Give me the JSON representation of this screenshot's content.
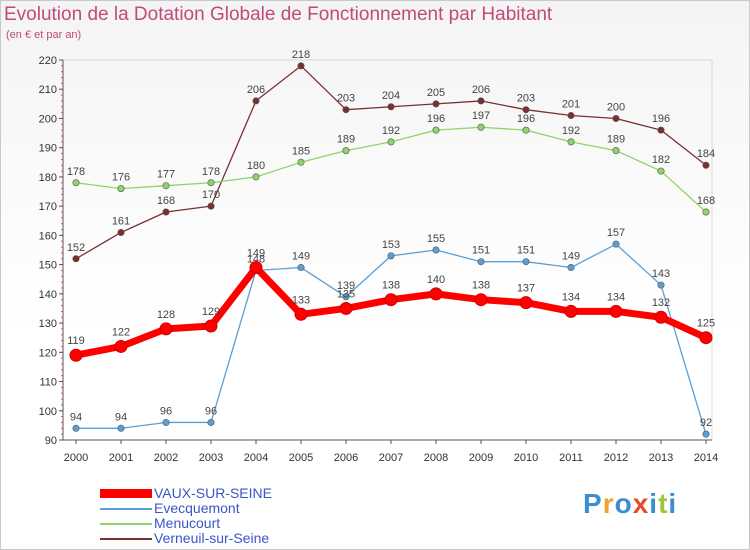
{
  "title": "Evolution de la Dotation Globale de Fonctionnement par Habitant",
  "subtitle": "(en € et par an)",
  "logo": {
    "text": "Proxiti",
    "letters": [
      "P",
      "r",
      "o",
      "x",
      "i",
      "t",
      "i"
    ],
    "colors": [
      "#3b8fd0",
      "#f2a22b",
      "#3b8fd0",
      "#e84a2f",
      "#3b8fd0",
      "#9cc63b",
      "#3b8fd0"
    ]
  },
  "chart_data": {
    "type": "line",
    "title": "Evolution de la Dotation Globale de Fonctionnement par Habitant",
    "subtitle": "(en € et par an)",
    "categories": [
      "2000",
      "2001",
      "2002",
      "2003",
      "2004",
      "2005",
      "2006",
      "2007",
      "2008",
      "2009",
      "2010",
      "2011",
      "2012",
      "2013",
      "2014"
    ],
    "ylim": [
      90,
      220
    ],
    "yticks": [
      90,
      100,
      110,
      120,
      130,
      140,
      150,
      160,
      170,
      180,
      190,
      200,
      210,
      220
    ],
    "grid": false,
    "legend_position": "bottom-left",
    "series": [
      {
        "name": "VAUX-SUR-SEINE",
        "color": "#ff0000",
        "values": [
          119,
          122,
          128,
          129,
          149,
          133,
          135,
          138,
          140,
          138,
          137,
          134,
          134,
          132,
          125
        ],
        "labels": [
          "119",
          "122",
          "128",
          "129",
          "149",
          "133",
          "135",
          "138",
          "140",
          "138",
          "137",
          "134",
          "134",
          "132",
          "125"
        ]
      },
      {
        "name": "Evecquemont",
        "color": "#5b9fd4",
        "values": [
          94,
          94,
          96,
          96,
          148,
          149,
          139,
          153,
          155,
          151,
          151,
          149,
          157,
          143,
          92
        ],
        "labels": [
          "94",
          "94",
          "96",
          "96",
          "148",
          "149",
          "139",
          "153",
          "155",
          "151",
          "151",
          "149",
          "157",
          "143",
          "92"
        ]
      },
      {
        "name": "Menucourt",
        "color": "#8fd46a",
        "values": [
          178,
          176,
          177,
          178,
          180,
          185,
          189,
          192,
          196,
          197,
          196,
          192,
          189,
          182,
          168
        ],
        "labels": [
          "178",
          "176",
          "177",
          "178",
          "180",
          "185",
          "189",
          "192",
          "196",
          "197",
          "196",
          "192",
          "189",
          "182",
          "168"
        ]
      },
      {
        "name": "Verneuil-sur-Seine",
        "color": "#7a3030",
        "values": [
          152,
          161,
          168,
          170,
          206,
          218,
          203,
          204,
          205,
          206,
          203,
          201,
          200,
          196,
          184
        ],
        "labels": [
          "152",
          "161",
          "168",
          "170",
          "206",
          "218",
          "203",
          "204",
          "205",
          "206",
          "203",
          "201",
          "200",
          "196",
          "184"
        ]
      }
    ]
  }
}
